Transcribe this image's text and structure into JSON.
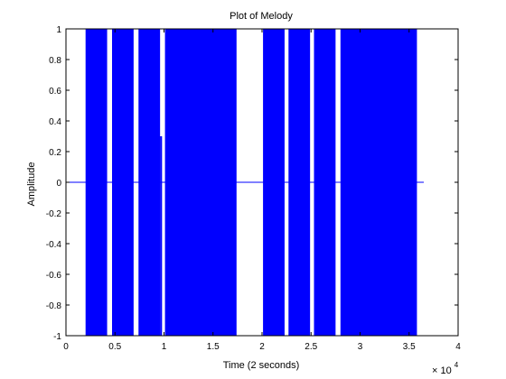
{
  "chart_data": {
    "type": "area",
    "title": "Plot of Melody",
    "xlabel": "Time (2 seconds)",
    "ylabel": "Amplitude",
    "x_scale_label_base": "× 10",
    "x_scale_label_exp": "4",
    "xlim": [
      0,
      40000
    ],
    "ylim": [
      -1,
      1
    ],
    "x_ticks": [
      0,
      5000,
      10000,
      15000,
      20000,
      25000,
      30000,
      35000,
      40000
    ],
    "x_tick_labels": [
      "0",
      "0.5",
      "1",
      "1.5",
      "2",
      "2.5",
      "3",
      "3.5",
      "4"
    ],
    "y_ticks": [
      -1,
      -0.8,
      -0.6,
      -0.4,
      -0.2,
      0,
      0.2,
      0.4,
      0.6,
      0.8,
      1
    ],
    "y_tick_labels": [
      "-1",
      "-0.8",
      "-0.6",
      "-0.4",
      "-0.2",
      "0",
      "0.2",
      "0.4",
      "0.6",
      "0.8",
      "1"
    ],
    "grid": false,
    "series_color": "#0000ff",
    "series": [
      {
        "baseline": {
          "x_start": 0,
          "x_end": 36500,
          "y": 0
        },
        "segments": [
          {
            "x_start": 2000,
            "x_end": 4200,
            "y_min": -1,
            "y_max": 1
          },
          {
            "x_start": 4700,
            "x_end": 6900,
            "y_min": -1,
            "y_max": 1
          },
          {
            "x_start": 7400,
            "x_end": 9600,
            "y_min": -1,
            "y_max": 1
          },
          {
            "x_start": 9600,
            "x_end": 9800,
            "y_min": -1,
            "y_max": 0.3
          },
          {
            "x_start": 10100,
            "x_end": 17400,
            "y_min": -1,
            "y_max": 1
          },
          {
            "x_start": 20100,
            "x_end": 22300,
            "y_min": -1,
            "y_max": 1
          },
          {
            "x_start": 22700,
            "x_end": 24900,
            "y_min": -1,
            "y_max": 1
          },
          {
            "x_start": 25300,
            "x_end": 27500,
            "y_min": -1,
            "y_max": 1
          },
          {
            "x_start": 28000,
            "x_end": 35800,
            "y_min": -1,
            "y_max": 1
          }
        ]
      }
    ]
  }
}
